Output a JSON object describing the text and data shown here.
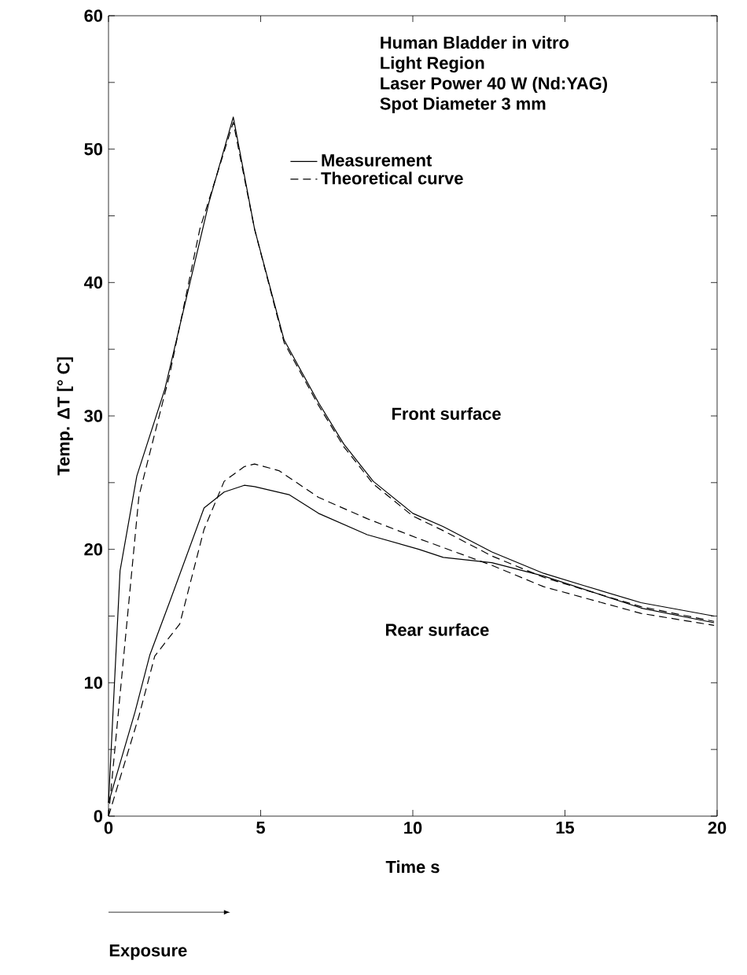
{
  "chart_data": {
    "type": "line",
    "xlabel": "Time  s",
    "ylabel": "Temp.  ΔT [° C]",
    "xlim": [
      0,
      20
    ],
    "ylim": [
      0,
      60
    ],
    "xticks": [
      0,
      5,
      10,
      15,
      20
    ],
    "yticks": [
      0,
      {
        "value": 5,
        "label": null
      },
      10,
      {
        "value": 15,
        "label": null
      },
      20,
      {
        "value": 25,
        "label": null
      },
      30,
      {
        "value": 35,
        "label": null
      },
      40,
      {
        "value": 45,
        "label": null
      },
      50,
      {
        "value": 55,
        "label": null
      },
      60
    ],
    "legend": "top",
    "series": [
      {
        "name": "Measurement",
        "color": "#000000",
        "line_style": "solid",
        "x": [
          0,
          0.38,
          0.93,
          1.85,
          3.3,
          4.1,
          4.8,
          5.77,
          6.9,
          7.73,
          8.7,
          10,
          11,
          12.6,
          14.3,
          15.6,
          17.5,
          19.9
        ],
        "values": [
          1,
          18.4,
          25.5,
          32,
          46,
          52.4,
          44,
          35.7,
          31,
          27.9,
          25.1,
          22.7,
          21.7,
          19.8,
          18.2,
          17.3,
          16,
          15
        ]
      },
      {
        "name": "Theoretical curve",
        "color": "#000000",
        "line_style": "dashed",
        "x": [
          0,
          1,
          2,
          3,
          4.1,
          4.8,
          5.77,
          6.9,
          7.73,
          8.7,
          10,
          11,
          12.6,
          14.3,
          15.6,
          17.5,
          19.9
        ],
        "values": [
          0,
          24,
          33,
          44,
          52,
          44,
          35.5,
          30.8,
          27.7,
          24.9,
          22.5,
          21.4,
          19.5,
          17.9,
          17,
          15.7,
          14.6
        ]
      },
      {
        "color": "#000000",
        "line_style": "solid",
        "x": [
          0,
          0.87,
          1.36,
          2,
          3.14,
          3.8,
          4.46,
          4.8,
          5.93,
          6.9,
          8.5,
          10.2,
          11,
          12.6,
          14.3,
          15.9,
          17.5,
          19.9
        ],
        "values": [
          1,
          7.8,
          12.1,
          16,
          23.1,
          24.3,
          24.8,
          24.7,
          24.1,
          22.7,
          21.1,
          20,
          19.4,
          19,
          18,
          16.8,
          15.6,
          14.5
        ]
      },
      {
        "color": "#000000",
        "line_style": "dashed",
        "x": [
          0,
          1,
          1.52,
          2.34,
          3.14,
          3.8,
          4.46,
          4.8,
          5.6,
          6.9,
          8.5,
          10.2,
          12.6,
          14.3,
          15.9,
          17.5,
          19.9
        ],
        "values": [
          0,
          7.5,
          12,
          14.4,
          21.5,
          25.1,
          26.2,
          26.4,
          25.9,
          23.9,
          22.3,
          20.8,
          18.8,
          17.2,
          16.2,
          15.2,
          14.3
        ]
      }
    ],
    "annotations": [
      "Human Bladder in vitro",
      "Light Region",
      "Laser Power 40 W (Nd:YAG)",
      "Spot Diameter 3 mm",
      "Front surface",
      "Rear surface",
      "Exposure"
    ]
  }
}
